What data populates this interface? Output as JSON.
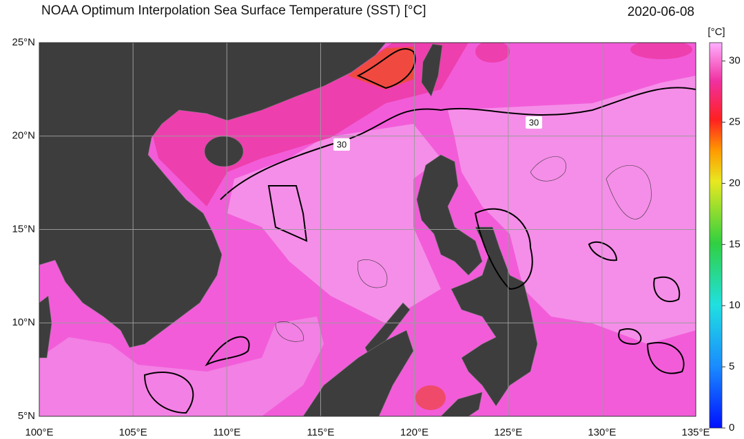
{
  "header": {
    "title": "NOAA Optimum Interpolation Sea Surface Temperature (SST) [°C]",
    "date": "2020-06-08"
  },
  "map": {
    "xlim": [
      100,
      135
    ],
    "ylim": [
      5,
      25
    ],
    "xticks": [
      {
        "value": 100,
        "label": "100°E"
      },
      {
        "value": 105,
        "label": "105°E"
      },
      {
        "value": 110,
        "label": "110°E"
      },
      {
        "value": 115,
        "label": "115°E"
      },
      {
        "value": 120,
        "label": "120°E"
      },
      {
        "value": 125,
        "label": "125°E"
      },
      {
        "value": 130,
        "label": "130°E"
      },
      {
        "value": 135,
        "label": "135°E"
      }
    ],
    "yticks": [
      {
        "value": 5,
        "label": "5°N"
      },
      {
        "value": 10,
        "label": "10°N"
      },
      {
        "value": 15,
        "label": "15°N"
      },
      {
        "value": 20,
        "label": "20°N"
      },
      {
        "value": 25,
        "label": "25°N"
      }
    ],
    "contour_labels": [
      30,
      30
    ]
  },
  "colorbar": {
    "label": "[°C]",
    "lim": [
      0,
      31.5
    ],
    "ticks": [
      0,
      5,
      10,
      15,
      20,
      25,
      30
    ]
  }
}
